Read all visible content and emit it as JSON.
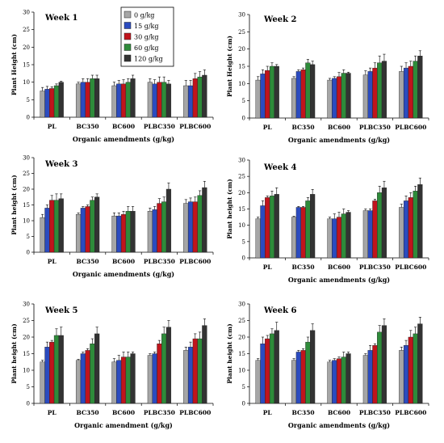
{
  "colors": [
    "#a6a6a6",
    "#2b4bbf",
    "#c0141c",
    "#2e8b3a",
    "#333333"
  ],
  "legend": [
    "0 g/kg",
    "15 g/kg",
    "30 g/kg",
    "60 g/kg",
    "120 g/kg"
  ],
  "chart_data": [
    {
      "type": "bar",
      "title": "Week 1",
      "categories": [
        "PL",
        "BC350",
        "BC600",
        "PLBC350",
        "PLBC600"
      ],
      "ylabel": "Plant Height (cm)",
      "xlabel": "Organic amendments (g/kg)",
      "ylim": [
        0,
        30
      ],
      "yticks": [
        0,
        5,
        10,
        15,
        20,
        25,
        30
      ],
      "series": [
        {
          "name": "0 g/kg",
          "values": [
            7.5,
            9.5,
            9.0,
            10.0,
            9.0
          ],
          "errors": [
            1.0,
            0.5,
            1.0,
            1.0,
            1.5
          ]
        },
        {
          "name": "15 g/kg",
          "values": [
            8.0,
            10.0,
            9.5,
            9.5,
            9.0
          ],
          "errors": [
            0.8,
            1.0,
            1.0,
            1.2,
            1.5
          ]
        },
        {
          "name": "30 g/kg",
          "values": [
            8.2,
            10.0,
            9.5,
            10.0,
            11.0
          ],
          "errors": [
            0.5,
            1.0,
            1.2,
            1.5,
            1.5
          ]
        },
        {
          "name": "60 g/kg",
          "values": [
            9.0,
            11.0,
            10.0,
            10.0,
            11.5
          ],
          "errors": [
            0.5,
            1.0,
            1.0,
            1.5,
            1.5
          ]
        },
        {
          "name": "120 g/kg",
          "values": [
            10.0,
            11.0,
            11.0,
            9.5,
            12.0
          ],
          "errors": [
            0.3,
            1.0,
            1.0,
            1.0,
            1.5
          ]
        }
      ]
    },
    {
      "type": "bar",
      "title": "Week 2",
      "categories": [
        "PL",
        "BC350",
        "BC600",
        "PLBC350",
        "PLBC600"
      ],
      "ylabel": "Plant Height (cm)",
      "xlabel": "Organic amendments (g/kg)",
      "ylim": [
        0,
        30
      ],
      "yticks": [
        0,
        5,
        10,
        15,
        20,
        25,
        30
      ],
      "series": [
        {
          "name": "0 g/kg",
          "values": [
            11.0,
            11.5,
            11.0,
            12.5,
            13.5
          ],
          "errors": [
            1.0,
            0.5,
            0.5,
            1.2,
            1.5
          ]
        },
        {
          "name": "15 g/kg",
          "values": [
            12.8,
            13.5,
            11.5,
            13.5,
            14.5
          ],
          "errors": [
            1.2,
            0.5,
            0.5,
            1.0,
            1.5
          ]
        },
        {
          "name": "30 g/kg",
          "values": [
            13.8,
            14.0,
            12.0,
            14.5,
            15.0
          ],
          "errors": [
            1.2,
            0.5,
            1.2,
            1.5,
            1.5
          ]
        },
        {
          "name": "60 g/kg",
          "values": [
            15.0,
            16.0,
            13.0,
            16.0,
            16.5
          ],
          "errors": [
            1.0,
            1.0,
            1.0,
            2.0,
            1.5
          ]
        },
        {
          "name": "120 g/kg",
          "values": [
            15.0,
            15.5,
            13.0,
            16.5,
            18.0
          ],
          "errors": [
            0.5,
            1.0,
            0.3,
            2.0,
            1.5
          ]
        }
      ]
    },
    {
      "type": "bar",
      "title": "Week 3",
      "categories": [
        "PL",
        "BC350",
        "BC600",
        "PLBC350",
        "PLBC600"
      ],
      "ylabel": "Plant height (cm)",
      "xlabel": "Organic amendments (g/kg)",
      "ylim": [
        0,
        30
      ],
      "yticks": [
        0,
        5,
        10,
        15,
        20,
        25,
        30
      ],
      "series": [
        {
          "name": "0 g/kg",
          "values": [
            11.0,
            12.0,
            11.5,
            13.0,
            15.5
          ],
          "errors": [
            1.0,
            0.5,
            1.0,
            1.0,
            1.2
          ]
        },
        {
          "name": "15 g/kg",
          "values": [
            14.0,
            14.0,
            11.5,
            13.5,
            16.0
          ],
          "errors": [
            1.0,
            0.5,
            1.0,
            1.0,
            1.2
          ]
        },
        {
          "name": "30 g/kg",
          "values": [
            16.5,
            14.5,
            12.0,
            15.5,
            16.0
          ],
          "errors": [
            1.5,
            0.5,
            1.0,
            1.5,
            1.5
          ]
        },
        {
          "name": "60 g/kg",
          "values": [
            16.5,
            16.5,
            13.0,
            16.0,
            18.0
          ],
          "errors": [
            2.0,
            1.0,
            1.5,
            1.5,
            1.5
          ]
        },
        {
          "name": "120 g/kg",
          "values": [
            17.0,
            17.5,
            13.0,
            20.0,
            20.5
          ],
          "errors": [
            1.5,
            1.0,
            1.5,
            2.0,
            2.0
          ]
        }
      ]
    },
    {
      "type": "bar",
      "title": "Week 4",
      "categories": [
        "PL",
        "BC350",
        "BC600",
        "PLBC350",
        "PLBC600"
      ],
      "ylabel": "Plant height (cm)",
      "xlabel": "Organic amendments (g/kg)",
      "ylim": [
        0,
        30
      ],
      "yticks": [
        0,
        5,
        10,
        15,
        20,
        25,
        30
      ],
      "series": [
        {
          "name": "0 g/kg",
          "values": [
            12.0,
            12.5,
            12.0,
            14.5,
            15.5
          ],
          "errors": [
            0.5,
            0.3,
            0.5,
            0.5,
            1.0
          ]
        },
        {
          "name": "15 g/kg",
          "values": [
            16.0,
            15.5,
            12.0,
            14.5,
            17.5
          ],
          "errors": [
            1.5,
            0.3,
            1.5,
            0.5,
            1.5
          ]
        },
        {
          "name": "30 g/kg",
          "values": [
            18.5,
            15.5,
            12.5,
            17.5,
            18.5
          ],
          "errors": [
            0.5,
            0.3,
            1.5,
            0.5,
            1.5
          ]
        },
        {
          "name": "60 g/kg",
          "values": [
            19.0,
            17.5,
            13.5,
            20.0,
            20.5
          ],
          "errors": [
            1.5,
            1.0,
            1.5,
            2.0,
            1.5
          ]
        },
        {
          "name": "120 g/kg",
          "values": [
            19.5,
            19.5,
            14.0,
            21.5,
            22.5
          ],
          "errors": [
            2.0,
            1.5,
            0.5,
            2.0,
            2.0
          ]
        }
      ]
    },
    {
      "type": "bar",
      "title": "Week 5",
      "categories": [
        "PL",
        "BC350",
        "BC600",
        "PLBC350",
        "PLBC600"
      ],
      "ylabel": "Plant height (cm)",
      "xlabel": "Organic amendment (g/kg)",
      "ylim": [
        0,
        30
      ],
      "yticks": [
        0,
        5,
        10,
        15,
        20,
        25,
        30
      ],
      "series": [
        {
          "name": "0 g/kg",
          "values": [
            12.5,
            13.0,
            12.5,
            14.5,
            16.0
          ],
          "errors": [
            0.5,
            0.3,
            1.0,
            0.5,
            1.0
          ]
        },
        {
          "name": "15 g/kg",
          "values": [
            17.0,
            15.0,
            13.0,
            15.0,
            17.0
          ],
          "errors": [
            1.5,
            0.5,
            1.5,
            0.5,
            1.5
          ]
        },
        {
          "name": "30 g/kg",
          "values": [
            18.5,
            16.0,
            14.0,
            18.0,
            19.5
          ],
          "errors": [
            0.5,
            0.5,
            1.5,
            1.0,
            1.5
          ]
        },
        {
          "name": "60 g/kg",
          "values": [
            20.5,
            18.0,
            14.0,
            21.0,
            19.5
          ],
          "errors": [
            2.0,
            1.5,
            1.5,
            2.0,
            2.0
          ]
        },
        {
          "name": "120 g/kg",
          "values": [
            20.5,
            21.0,
            15.0,
            23.0,
            23.5
          ],
          "errors": [
            2.5,
            2.0,
            0.5,
            2.0,
            2.0
          ]
        }
      ]
    },
    {
      "type": "bar",
      "title": "Week 6",
      "categories": [
        "PL",
        "BC350",
        "BC600",
        "PLBC350",
        "PLBC600"
      ],
      "ylabel": "Plant height (cm)",
      "xlabel": "Organic amendments (g/kg)",
      "ylim": [
        0,
        30
      ],
      "yticks": [
        0,
        5,
        10,
        15,
        20,
        25,
        30
      ],
      "series": [
        {
          "name": "0 g/kg",
          "values": [
            13.0,
            13.0,
            12.5,
            14.5,
            16.0
          ],
          "errors": [
            0.5,
            0.5,
            0.5,
            0.5,
            1.0
          ]
        },
        {
          "name": "15 g/kg",
          "values": [
            18.0,
            15.5,
            13.0,
            16.0,
            17.5
          ],
          "errors": [
            2.0,
            0.5,
            0.5,
            1.5,
            1.5
          ]
        },
        {
          "name": "30 g/kg",
          "values": [
            19.5,
            16.0,
            13.5,
            17.5,
            20.0
          ],
          "errors": [
            1.0,
            0.5,
            0.5,
            0.5,
            2.0
          ]
        },
        {
          "name": "60 g/kg",
          "values": [
            21.0,
            18.5,
            14.0,
            21.5,
            21.0
          ],
          "errors": [
            1.5,
            1.5,
            1.5,
            2.0,
            2.0
          ]
        },
        {
          "name": "120 g/kg",
          "values": [
            22.0,
            22.0,
            15.0,
            23.5,
            24.0
          ],
          "errors": [
            2.5,
            2.0,
            0.5,
            2.0,
            2.0
          ]
        }
      ]
    }
  ]
}
